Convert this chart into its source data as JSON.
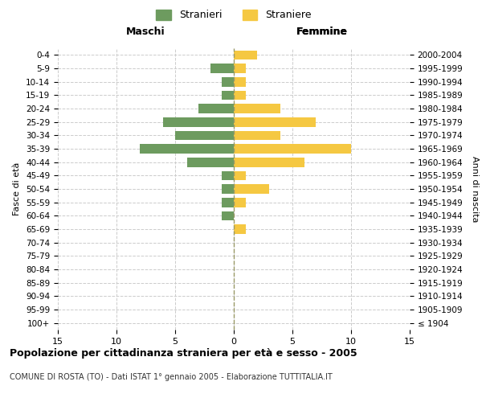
{
  "age_groups": [
    "100+",
    "95-99",
    "90-94",
    "85-89",
    "80-84",
    "75-79",
    "70-74",
    "65-69",
    "60-64",
    "55-59",
    "50-54",
    "45-49",
    "40-44",
    "35-39",
    "30-34",
    "25-29",
    "20-24",
    "15-19",
    "10-14",
    "5-9",
    "0-4"
  ],
  "birth_years": [
    "≤ 1904",
    "1905-1909",
    "1910-1914",
    "1915-1919",
    "1920-1924",
    "1925-1929",
    "1930-1934",
    "1935-1939",
    "1940-1944",
    "1945-1949",
    "1950-1954",
    "1955-1959",
    "1960-1964",
    "1965-1969",
    "1970-1974",
    "1975-1979",
    "1980-1984",
    "1985-1989",
    "1990-1994",
    "1995-1999",
    "2000-2004"
  ],
  "maschi": [
    0,
    0,
    0,
    0,
    0,
    0,
    0,
    0,
    1,
    1,
    1,
    1,
    4,
    8,
    5,
    6,
    3,
    1,
    1,
    2,
    0
  ],
  "femmine": [
    0,
    0,
    0,
    0,
    0,
    0,
    0,
    1,
    0,
    1,
    3,
    1,
    6,
    10,
    4,
    7,
    4,
    1,
    1,
    1,
    2
  ],
  "color_maschi": "#6d9b5f",
  "color_femmine": "#f5c842",
  "title": "Popolazione per cittadinanza straniera per età e sesso - 2005",
  "subtitle": "COMUNE DI ROSTA (TO) - Dati ISTAT 1° gennaio 2005 - Elaborazione TUTTITALIA.IT",
  "xlabel_left": "Maschi",
  "xlabel_right": "Femmine",
  "ylabel_left": "Fasce di età",
  "ylabel_right": "Anni di nascita",
  "legend_maschi": "Stranieri",
  "legend_femmine": "Straniere",
  "xlim": 15,
  "background_color": "#ffffff",
  "grid_color": "#cccccc"
}
